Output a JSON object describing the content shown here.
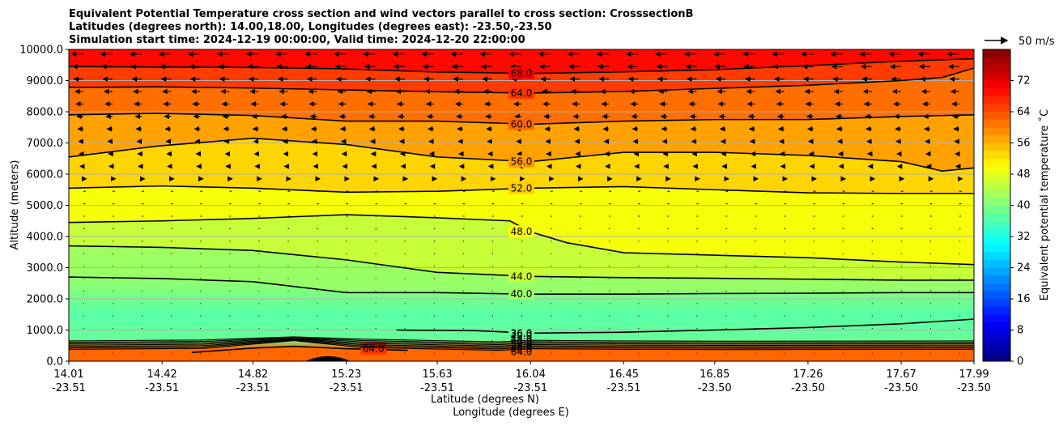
{
  "chart_data": {
    "type": "contour",
    "title_lines": [
      "Equivalent Potential Temperature cross section and wind vectors parallel to cross section: CrosssectionB",
      "Latitudes (degrees north): 14.00,18.00, Longitudes (degrees east): -23.50,-23.50",
      "Simulation start time: 2024-12-19 00:00:00, Valid time: 2024-12-20 22:00:00"
    ],
    "xlabel_lat": "Latitude (degrees N)",
    "xlabel_lon": "Longitude (degrees E)",
    "ylabel": "Altitude (meters)",
    "xlim": [
      14.01,
      17.99
    ],
    "ylim": [
      0,
      10000
    ],
    "grid": "horizontal",
    "x_ticks": [
      {
        "lat": "14.01",
        "lon": "-23.51",
        "value": 14.01
      },
      {
        "lat": "14.42",
        "lon": "-23.51",
        "value": 14.42
      },
      {
        "lat": "14.82",
        "lon": "-23.51",
        "value": 14.82
      },
      {
        "lat": "15.23",
        "lon": "-23.51",
        "value": 15.23
      },
      {
        "lat": "15.63",
        "lon": "-23.51",
        "value": 15.63
      },
      {
        "lat": "16.04",
        "lon": "-23.51",
        "value": 16.04
      },
      {
        "lat": "16.45",
        "lon": "-23.51",
        "value": 16.45
      },
      {
        "lat": "16.85",
        "lon": "-23.50",
        "value": 16.85
      },
      {
        "lat": "17.26",
        "lon": "-23.50",
        "value": 17.26
      },
      {
        "lat": "17.67",
        "lon": "-23.50",
        "value": 17.67
      },
      {
        "lat": "17.99",
        "lon": "-23.50",
        "value": 17.99
      }
    ],
    "y_ticks": [
      {
        "label": "0.0",
        "value": 0
      },
      {
        "label": "1000.0",
        "value": 1000
      },
      {
        "label": "2000.0",
        "value": 2000
      },
      {
        "label": "3000.0",
        "value": 3000
      },
      {
        "label": "4000.0",
        "value": 4000
      },
      {
        "label": "5000.0",
        "value": 5000
      },
      {
        "label": "6000.0",
        "value": 6000
      },
      {
        "label": "7000.0",
        "value": 7000
      },
      {
        "label": "8000.0",
        "value": 8000
      },
      {
        "label": "9000.0",
        "value": 9000
      },
      {
        "label": "10000.0",
        "value": 10000
      }
    ],
    "colorbar": {
      "label": "Equivalent potential temperature $^\\circ$C",
      "label_display": "Equivalent potential temperature ˚C",
      "min": 0,
      "max": 80,
      "ticks": [
        "0",
        "8",
        "16",
        "24",
        "32",
        "40",
        "48",
        "56",
        "64",
        "72"
      ],
      "colormap": "jet"
    },
    "quiver_key": {
      "label": "50 m/s"
    },
    "contours": [
      {
        "level": 68,
        "label": "68.0",
        "points": [
          [
            14.01,
            9450
          ],
          [
            14.8,
            9420
          ],
          [
            15.2,
            9380
          ],
          [
            15.6,
            9280
          ],
          [
            16.04,
            9230
          ],
          [
            16.45,
            9280
          ],
          [
            16.85,
            9350
          ],
          [
            17.26,
            9480
          ],
          [
            17.67,
            9620
          ],
          [
            17.99,
            9700
          ]
        ]
      },
      {
        "level": 64,
        "label": "64.0",
        "points": [
          [
            14.01,
            8780
          ],
          [
            14.4,
            8800
          ],
          [
            14.82,
            8760
          ],
          [
            15.23,
            8700
          ],
          [
            15.63,
            8640
          ],
          [
            16.04,
            8600
          ],
          [
            16.45,
            8650
          ],
          [
            16.85,
            8750
          ],
          [
            17.26,
            8850
          ],
          [
            17.67,
            9000
          ],
          [
            17.85,
            9100
          ],
          [
            17.99,
            9400
          ]
        ]
      },
      {
        "level": 60,
        "label": "60.0",
        "points": [
          [
            14.01,
            7900
          ],
          [
            14.4,
            7950
          ],
          [
            14.82,
            7880
          ],
          [
            15.23,
            7700
          ],
          [
            15.63,
            7700
          ],
          [
            16.04,
            7600
          ],
          [
            16.45,
            7700
          ],
          [
            16.85,
            7750
          ],
          [
            17.26,
            7750
          ],
          [
            17.67,
            7850
          ],
          [
            17.99,
            7900
          ]
        ]
      },
      {
        "level": 56,
        "label": "56.0",
        "points": [
          [
            14.01,
            6550
          ],
          [
            14.4,
            6900
          ],
          [
            14.82,
            7150
          ],
          [
            15.23,
            6950
          ],
          [
            15.63,
            6550
          ],
          [
            16.04,
            6400
          ],
          [
            16.45,
            6700
          ],
          [
            16.85,
            6700
          ],
          [
            17.26,
            6600
          ],
          [
            17.67,
            6400
          ],
          [
            17.85,
            6100
          ],
          [
            17.99,
            6200
          ]
        ]
      },
      {
        "level": 52,
        "label": "52.0",
        "points": [
          [
            14.01,
            5550
          ],
          [
            14.42,
            5620
          ],
          [
            14.82,
            5550
          ],
          [
            15.23,
            5420
          ],
          [
            15.63,
            5450
          ],
          [
            16.04,
            5550
          ],
          [
            16.45,
            5600
          ],
          [
            16.85,
            5500
          ],
          [
            17.26,
            5400
          ],
          [
            17.67,
            5380
          ],
          [
            17.99,
            5380
          ]
        ]
      },
      {
        "level": 48,
        "label": "48.0",
        "points": [
          [
            14.01,
            4450
          ],
          [
            14.42,
            4500
          ],
          [
            14.82,
            4580
          ],
          [
            15.23,
            4700
          ],
          [
            15.63,
            4600
          ],
          [
            15.95,
            4500
          ],
          [
            16.04,
            4150
          ],
          [
            16.2,
            3800
          ],
          [
            16.45,
            3480
          ],
          [
            16.85,
            3400
          ],
          [
            17.26,
            3320
          ],
          [
            17.67,
            3180
          ],
          [
            17.99,
            3100
          ]
        ]
      },
      {
        "level": 44,
        "label": "44.0",
        "points": [
          [
            14.01,
            3700
          ],
          [
            14.42,
            3650
          ],
          [
            14.82,
            3550
          ],
          [
            15.23,
            3250
          ],
          [
            15.63,
            2850
          ],
          [
            16.04,
            2720
          ],
          [
            16.45,
            2680
          ],
          [
            16.85,
            2660
          ],
          [
            17.26,
            2630
          ],
          [
            17.67,
            2600
          ],
          [
            17.99,
            2600
          ]
        ]
      },
      {
        "level": 40,
        "label": "40.0",
        "points": [
          [
            14.01,
            2700
          ],
          [
            14.42,
            2650
          ],
          [
            14.82,
            2550
          ],
          [
            15.23,
            2200
          ],
          [
            15.63,
            2200
          ],
          [
            16.04,
            2150
          ],
          [
            16.45,
            2150
          ],
          [
            16.85,
            2170
          ],
          [
            17.26,
            2180
          ],
          [
            17.67,
            2200
          ],
          [
            17.99,
            2200
          ]
        ]
      },
      {
        "level": 36,
        "label": "36.0",
        "points": [
          [
            15.45,
            1000
          ],
          [
            15.8,
            980
          ],
          [
            16.04,
            900
          ],
          [
            16.45,
            930
          ],
          [
            16.85,
            1000
          ],
          [
            17.26,
            1080
          ],
          [
            17.67,
            1200
          ],
          [
            17.99,
            1350
          ]
        ]
      },
      {
        "level": 64,
        "label": "64.0",
        "points": [
          [
            14.55,
            280
          ],
          [
            14.82,
            420
          ],
          [
            15.0,
            480
          ],
          [
            15.23,
            400
          ],
          [
            15.5,
            350
          ]
        ]
      }
    ],
    "low_level_labels": [
      "36.0",
      "40.0",
      "44.0",
      "48.0",
      "52.0",
      "56.0",
      "60.0",
      "64.0"
    ]
  }
}
